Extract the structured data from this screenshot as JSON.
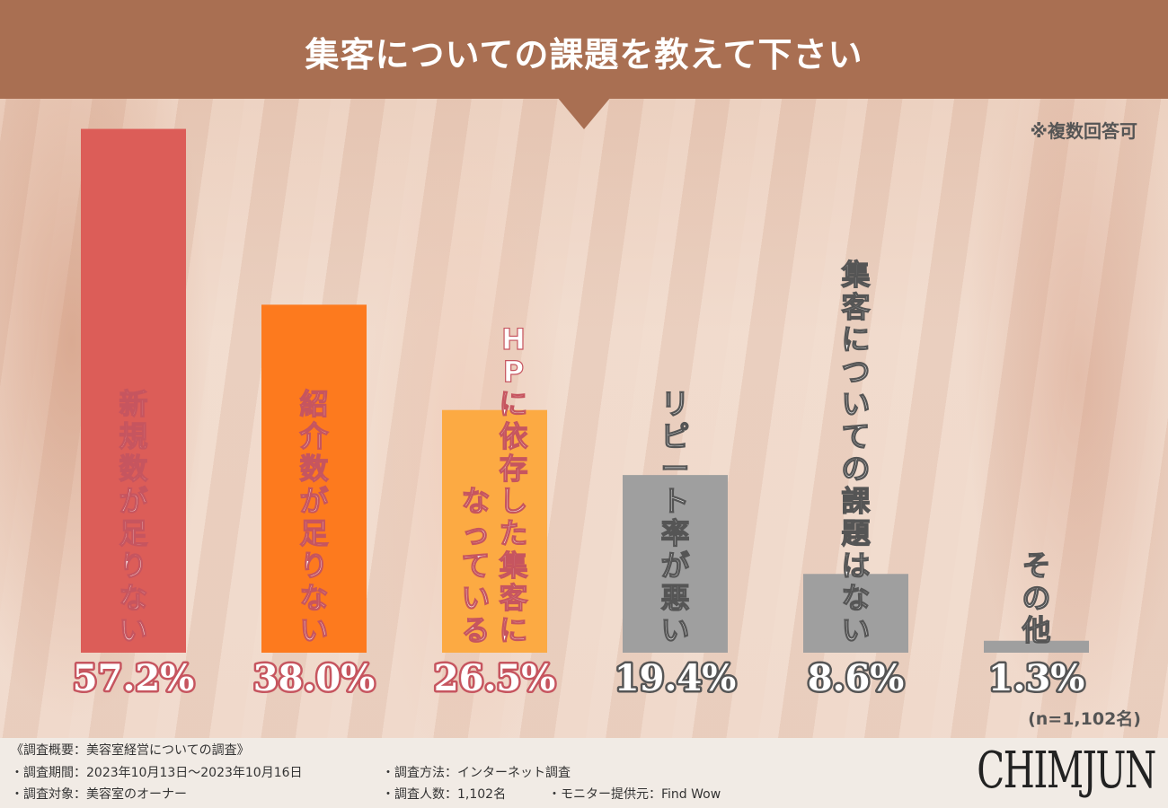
{
  "title": "集客についての課題を教えて下さい",
  "note": "※複数回答可",
  "sample_size": "(n=1,102名)",
  "chart_data": {
    "type": "bar",
    "categories": [
      "新規数が足りない",
      "紹介数が足りない",
      "HPに依存した集客になっている",
      "リピート率が悪い",
      "集客についての課題はない",
      "その他"
    ],
    "bar_text_lines": [
      [
        "新規数が足りない"
      ],
      [
        "紹介数が足りない"
      ],
      [
        "HPに依存した集客に",
        "なっている"
      ],
      [
        "リピート率が悪い"
      ],
      [
        "集客についての課題はない"
      ],
      [
        "その他"
      ]
    ],
    "values": [
      57.2,
      38.0,
      26.5,
      19.4,
      8.6,
      1.3
    ],
    "value_labels": [
      "57.2%",
      "38.0%",
      "26.5%",
      "19.4%",
      "8.6%",
      "1.3%"
    ],
    "colors": [
      "#dc5d58",
      "#fd7a1e",
      "#fcaa43",
      "#9f9f9f",
      "#9f9f9f",
      "#9f9f9f"
    ],
    "label_colors": [
      "#c6555f",
      "#c6555f",
      "#c6555f",
      "#555555",
      "#555555",
      "#555555"
    ],
    "unit": "%"
  },
  "footer": {
    "survey_summary": "《調査概要：美容室経営についての調査》",
    "survey_period": "・調査期間：2023年10月13日〜2023年10月16日",
    "survey_target": "・調査対象：美容室のオーナー",
    "survey_method": "・調査方法：インターネット調査",
    "survey_count": "・調査人数：1,102名",
    "monitor_provider": "・モニター提供元：Find Wow"
  },
  "logo": "CHIMJUN"
}
